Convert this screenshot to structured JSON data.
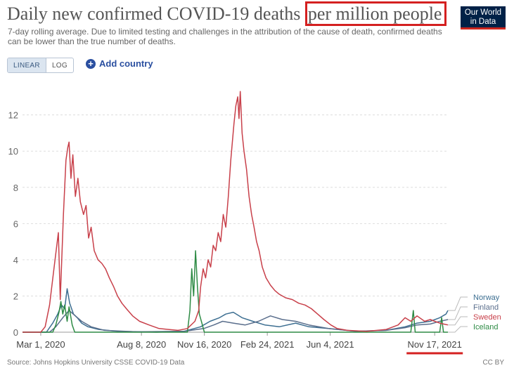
{
  "header": {
    "title_main": "Daily new confirmed COVID-19 deaths",
    "title_highlight": "per million people",
    "subtitle": "7-day rolling average. Due to limited testing and challenges in the attribution of the cause of death, confirmed deaths can be lower than the true number of deaths.",
    "logo_line1": "Our World",
    "logo_line2": "in Data"
  },
  "controls": {
    "linear_label": "LINEAR",
    "log_label": "LOG",
    "add_country_label": "Add country",
    "plus_symbol": "+"
  },
  "footer": {
    "source": "Source: Johns Hopkins University CSSE COVID-19 Data",
    "license": "CC BY"
  },
  "colors": {
    "Norway": "#3c6e91",
    "Finland": "#5a6e8c",
    "Sweden": "#c8404a",
    "Iceland": "#2e8b45",
    "highlight": "#d42020",
    "grid": "#dddddd",
    "axis": "#666666"
  },
  "chart_data": {
    "type": "line",
    "title": "Daily new confirmed COVID-19 deaths per million people",
    "xlabel": "",
    "ylabel": "",
    "ylim": [
      0,
      13.5
    ],
    "yticks": [
      0,
      2,
      4,
      6,
      8,
      10,
      12
    ],
    "x_range": [
      "2020-02-01",
      "2021-12-08"
    ],
    "x_ticks": [
      {
        "date": "2020-03-01",
        "label": "Mar 1, 2020"
      },
      {
        "date": "2020-08-08",
        "label": "Aug 8, 2020"
      },
      {
        "date": "2020-11-16",
        "label": "Nov 16, 2020"
      },
      {
        "date": "2021-02-24",
        "label": "Feb 24, 2021"
      },
      {
        "date": "2021-06-04",
        "label": "Jun 4, 2021"
      },
      {
        "date": "2021-11-17",
        "label": "Nov 17, 2021"
      }
    ],
    "highlighted_tick": "Nov 17, 2021",
    "grid": true,
    "legend_position": "right",
    "series": [
      {
        "name": "Sweden",
        "points": [
          [
            "2020-02-01",
            0
          ],
          [
            "2020-03-01",
            0
          ],
          [
            "2020-03-08",
            0.3
          ],
          [
            "2020-03-15",
            1.5
          ],
          [
            "2020-03-22",
            3.5
          ],
          [
            "2020-03-29",
            5.5
          ],
          [
            "2020-04-01",
            1.8
          ],
          [
            "2020-04-06",
            6.5
          ],
          [
            "2020-04-10",
            9.5
          ],
          [
            "2020-04-13",
            10.2
          ],
          [
            "2020-04-15",
            10.5
          ],
          [
            "2020-04-18",
            8.5
          ],
          [
            "2020-04-21",
            9.8
          ],
          [
            "2020-04-25",
            7.5
          ],
          [
            "2020-04-29",
            8.5
          ],
          [
            "2020-05-03",
            7.2
          ],
          [
            "2020-05-08",
            6.5
          ],
          [
            "2020-05-12",
            7.0
          ],
          [
            "2020-05-16",
            5.2
          ],
          [
            "2020-05-20",
            5.8
          ],
          [
            "2020-05-25",
            4.5
          ],
          [
            "2020-05-31",
            4.0
          ],
          [
            "2020-06-06",
            3.8
          ],
          [
            "2020-06-12",
            3.5
          ],
          [
            "2020-06-18",
            3.0
          ],
          [
            "2020-06-25",
            2.5
          ],
          [
            "2020-07-01",
            2.0
          ],
          [
            "2020-07-08",
            1.6
          ],
          [
            "2020-07-15",
            1.3
          ],
          [
            "2020-07-25",
            0.9
          ],
          [
            "2020-08-05",
            0.6
          ],
          [
            "2020-08-20",
            0.4
          ],
          [
            "2020-09-05",
            0.2
          ],
          [
            "2020-09-20",
            0.15
          ],
          [
            "2020-10-05",
            0.1
          ],
          [
            "2020-10-20",
            0.2
          ],
          [
            "2020-11-01",
            0.6
          ],
          [
            "2020-11-07",
            1.2
          ],
          [
            "2020-11-10",
            2.5
          ],
          [
            "2020-11-14",
            3.5
          ],
          [
            "2020-11-18",
            3.0
          ],
          [
            "2020-11-22",
            4.0
          ],
          [
            "2020-11-26",
            3.6
          ],
          [
            "2020-11-30",
            4.8
          ],
          [
            "2020-12-04",
            4.5
          ],
          [
            "2020-12-08",
            5.5
          ],
          [
            "2020-12-12",
            5.0
          ],
          [
            "2020-12-16",
            6.5
          ],
          [
            "2020-12-20",
            5.8
          ],
          [
            "2020-12-24",
            7.5
          ],
          [
            "2020-12-28",
            9.5
          ],
          [
            "2021-01-02",
            11.5
          ],
          [
            "2021-01-05",
            12.5
          ],
          [
            "2021-01-08",
            13.0
          ],
          [
            "2021-01-10",
            11.8
          ],
          [
            "2021-01-12",
            13.3
          ],
          [
            "2021-01-15",
            11.0
          ],
          [
            "2021-01-18",
            10.0
          ],
          [
            "2021-01-22",
            9.0
          ],
          [
            "2021-01-26",
            7.5
          ],
          [
            "2021-01-30",
            6.5
          ],
          [
            "2021-02-03",
            5.8
          ],
          [
            "2021-02-07",
            5.0
          ],
          [
            "2021-02-11",
            4.5
          ],
          [
            "2021-02-16",
            3.6
          ],
          [
            "2021-02-22",
            3.0
          ],
          [
            "2021-03-01",
            2.6
          ],
          [
            "2021-03-08",
            2.3
          ],
          [
            "2021-03-15",
            2.1
          ],
          [
            "2021-03-25",
            1.9
          ],
          [
            "2021-04-05",
            1.8
          ],
          [
            "2021-04-15",
            1.6
          ],
          [
            "2021-04-25",
            1.5
          ],
          [
            "2021-05-05",
            1.3
          ],
          [
            "2021-05-15",
            1.0
          ],
          [
            "2021-05-25",
            0.7
          ],
          [
            "2021-06-05",
            0.4
          ],
          [
            "2021-06-15",
            0.2
          ],
          [
            "2021-07-01",
            0.1
          ],
          [
            "2021-08-01",
            0.05
          ],
          [
            "2021-09-01",
            0.15
          ],
          [
            "2021-09-20",
            0.4
          ],
          [
            "2021-10-01",
            0.8
          ],
          [
            "2021-10-10",
            0.6
          ],
          [
            "2021-10-20",
            0.9
          ],
          [
            "2021-11-01",
            0.6
          ],
          [
            "2021-11-10",
            0.7
          ],
          [
            "2021-11-17",
            0.6
          ],
          [
            "2021-11-25",
            0.5
          ],
          [
            "2021-12-08",
            0.4
          ]
        ]
      },
      {
        "name": "Norway",
        "points": [
          [
            "2020-02-01",
            0
          ],
          [
            "2020-03-10",
            0
          ],
          [
            "2020-03-20",
            0.5
          ],
          [
            "2020-03-28",
            1.0
          ],
          [
            "2020-04-03",
            1.5
          ],
          [
            "2020-04-08",
            1.3
          ],
          [
            "2020-04-12",
            2.4
          ],
          [
            "2020-04-16",
            1.6
          ],
          [
            "2020-04-22",
            1.0
          ],
          [
            "2020-04-28",
            0.8
          ],
          [
            "2020-05-05",
            0.5
          ],
          [
            "2020-05-15",
            0.3
          ],
          [
            "2020-06-01",
            0.15
          ],
          [
            "2020-07-01",
            0.05
          ],
          [
            "2020-09-01",
            0
          ],
          [
            "2020-10-15",
            0.05
          ],
          [
            "2020-11-10",
            0.3
          ],
          [
            "2020-11-25",
            0.6
          ],
          [
            "2020-12-10",
            0.8
          ],
          [
            "2020-12-20",
            1.0
          ],
          [
            "2021-01-01",
            1.1
          ],
          [
            "2021-01-15",
            0.8
          ],
          [
            "2021-02-01",
            0.6
          ],
          [
            "2021-02-20",
            0.4
          ],
          [
            "2021-03-15",
            0.3
          ],
          [
            "2021-04-10",
            0.5
          ],
          [
            "2021-05-01",
            0.3
          ],
          [
            "2021-06-01",
            0.2
          ],
          [
            "2021-07-15",
            0.05
          ],
          [
            "2021-09-01",
            0.1
          ],
          [
            "2021-10-01",
            0.3
          ],
          [
            "2021-10-20",
            0.5
          ],
          [
            "2021-11-10",
            0.6
          ],
          [
            "2021-11-25",
            0.8
          ],
          [
            "2021-12-05",
            1.0
          ],
          [
            "2021-12-08",
            1.2
          ]
        ]
      },
      {
        "name": "Finland",
        "points": [
          [
            "2020-02-01",
            0
          ],
          [
            "2020-03-15",
            0
          ],
          [
            "2020-03-25",
            0.3
          ],
          [
            "2020-04-05",
            0.8
          ],
          [
            "2020-04-15",
            1.2
          ],
          [
            "2020-04-25",
            0.9
          ],
          [
            "2020-05-05",
            0.6
          ],
          [
            "2020-05-20",
            0.3
          ],
          [
            "2020-06-10",
            0.1
          ],
          [
            "2020-08-01",
            0.02
          ],
          [
            "2020-10-15",
            0.05
          ],
          [
            "2020-11-15",
            0.2
          ],
          [
            "2020-12-01",
            0.4
          ],
          [
            "2020-12-15",
            0.6
          ],
          [
            "2021-01-01",
            0.5
          ],
          [
            "2021-01-20",
            0.4
          ],
          [
            "2021-02-10",
            0.6
          ],
          [
            "2021-03-01",
            0.9
          ],
          [
            "2021-03-20",
            0.7
          ],
          [
            "2021-04-10",
            0.6
          ],
          [
            "2021-05-01",
            0.4
          ],
          [
            "2021-06-01",
            0.2
          ],
          [
            "2021-07-15",
            0.05
          ],
          [
            "2021-09-01",
            0.1
          ],
          [
            "2021-10-01",
            0.25
          ],
          [
            "2021-10-20",
            0.4
          ],
          [
            "2021-11-10",
            0.45
          ],
          [
            "2021-11-25",
            0.6
          ],
          [
            "2021-12-08",
            0.7
          ]
        ]
      },
      {
        "name": "Iceland",
        "points": [
          [
            "2020-02-01",
            0
          ],
          [
            "2020-03-20",
            0
          ],
          [
            "2020-03-25",
            0.4
          ],
          [
            "2020-03-30",
            1.1
          ],
          [
            "2020-04-02",
            1.7
          ],
          [
            "2020-04-05",
            1.0
          ],
          [
            "2020-04-08",
            1.5
          ],
          [
            "2020-04-12",
            0.6
          ],
          [
            "2020-04-15",
            1.4
          ],
          [
            "2020-04-20",
            0.4
          ],
          [
            "2020-04-24",
            0
          ],
          [
            "2020-10-20",
            0
          ],
          [
            "2020-10-24",
            1.2
          ],
          [
            "2020-10-27",
            3.5
          ],
          [
            "2020-10-30",
            2.0
          ],
          [
            "2020-11-02",
            4.5
          ],
          [
            "2020-11-05",
            2.5
          ],
          [
            "2020-11-08",
            1.0
          ],
          [
            "2020-11-12",
            0.5
          ],
          [
            "2020-11-16",
            0
          ],
          [
            "2021-10-10",
            0
          ],
          [
            "2021-10-14",
            1.2
          ],
          [
            "2021-10-17",
            0
          ],
          [
            "2021-11-25",
            0
          ],
          [
            "2021-11-28",
            0.8
          ],
          [
            "2021-12-01",
            0
          ],
          [
            "2021-12-08",
            0
          ]
        ]
      }
    ]
  }
}
